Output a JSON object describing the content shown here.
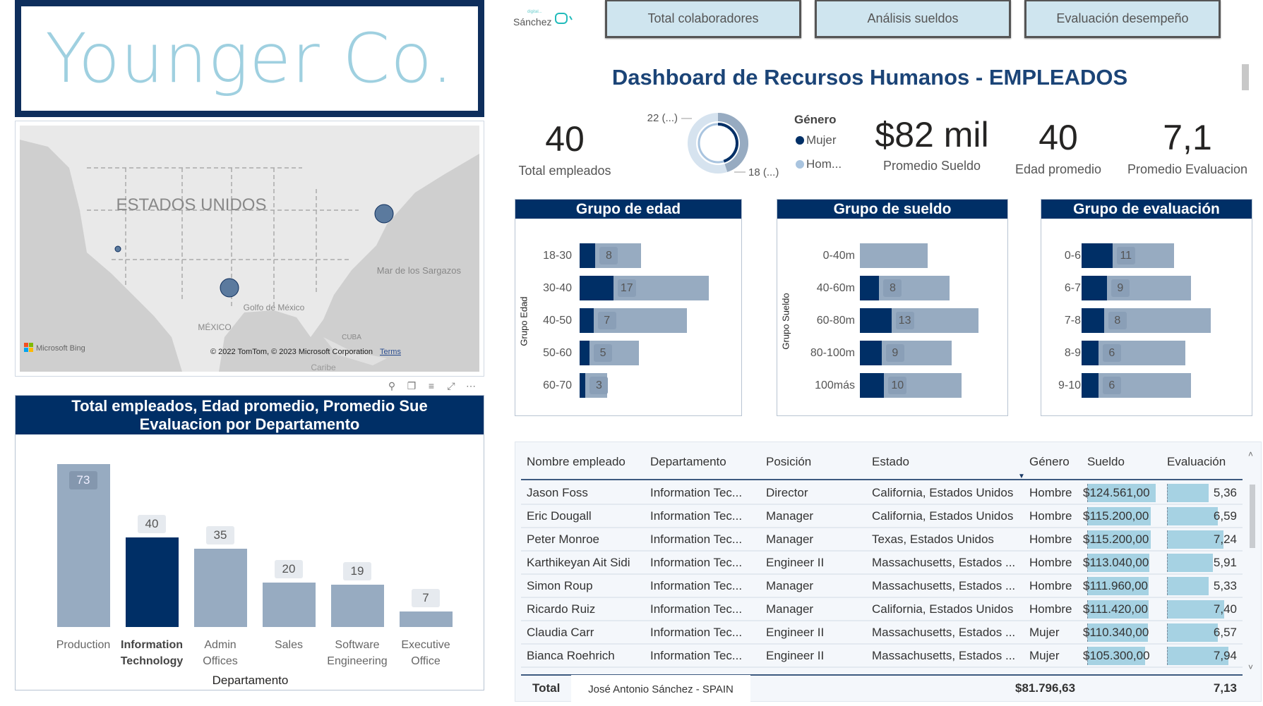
{
  "company_title": "Younger Co.",
  "logo": {
    "small": "digital...",
    "name": "Sánchez"
  },
  "nav_buttons": [
    "Total colaboradores",
    "Análisis sueldos",
    "Evaluación desempeño"
  ],
  "dashboard_title": "Dashboard de Recursos Humanos  - EMPLEADOS",
  "kpis": {
    "total_empleados": {
      "value": "40",
      "label": "Total empleados"
    },
    "promedio_sueldo": {
      "value": "$82 mil",
      "label": "Promedio Sueldo"
    },
    "edad_promedio": {
      "value": "40",
      "label": "Edad promedio"
    },
    "promedio_evaluacion": {
      "value": "7,1",
      "label": "Promedio Evaluacion"
    }
  },
  "gender_donut": {
    "legend_title": "Género",
    "legend": [
      {
        "label": "Mujer",
        "color": "#002f66"
      },
      {
        "label": "Hom...",
        "color": "#a9c4df"
      }
    ],
    "slice_labels": [
      "22 (...)",
      "18 (...)"
    ],
    "values": {
      "Hombre": 22,
      "Mujer": 18
    }
  },
  "map": {
    "country_label": "ESTADOS UNIDOS",
    "labels": [
      "Mar de los Sargazos",
      "Golfo de México",
      "MÉXICO",
      "CUBA",
      "Caribe"
    ],
    "attribution": "© 2022 TomTom, © 2023 Microsoft Corporation",
    "terms": "Terms",
    "bing": "Microsoft Bing",
    "bubbles": [
      {
        "state": "California",
        "size": "small"
      },
      {
        "state": "Texas",
        "size": "large"
      },
      {
        "state": "Massachusetts",
        "size": "large"
      }
    ]
  },
  "colors": {
    "navy": "#002f66",
    "bar_gray": "#97abc1",
    "accent_light": "#9fd0e0",
    "table_bar": "#a6d2e3"
  },
  "chart_data": [
    {
      "type": "bar",
      "title": "Total empleados, Edad promedio, Promedio Sue... Evaluacion por Departamento",
      "title_lines": [
        "Total empleados, Edad promedio, Promedio Sue",
        "Evaluacion por Departamento"
      ],
      "xlabel": "Departamento",
      "categories": [
        [
          "Production"
        ],
        [
          "Information",
          "Technology"
        ],
        [
          "Admin",
          "Offices"
        ],
        [
          "Sales"
        ],
        [
          "Software",
          "Engineering"
        ],
        [
          "Executive",
          "Office"
        ]
      ],
      "values": [
        73,
        40,
        35,
        20,
        19,
        7
      ],
      "selected_index": 1,
      "ylim": [
        0,
        73
      ]
    },
    {
      "type": "bar",
      "orientation": "horizontal",
      "title": "Grupo de edad",
      "ylabel": "Grupo Edad",
      "categories": [
        "18-30",
        "30-40",
        "40-50",
        "50-60",
        "60-70"
      ],
      "highlighted": [
        8,
        17,
        7,
        5,
        3
      ],
      "totals": [
        31,
        65,
        54,
        30,
        14
      ]
    },
    {
      "type": "bar",
      "orientation": "horizontal",
      "title": "Grupo de sueldo",
      "ylabel": "Grupo Sueldo",
      "categories": [
        "0-40m",
        "40-60m",
        "60-80m",
        "80-100m",
        "100más"
      ],
      "highlighted": [
        0,
        8,
        13,
        9,
        10
      ],
      "totals": [
        28,
        37,
        49,
        38,
        42
      ]
    },
    {
      "type": "bar",
      "orientation": "horizontal",
      "title": "Grupo de evaluación",
      "ylabel": "",
      "categories": [
        "0-6",
        "6-7",
        "7-8",
        "8-9",
        "9-10"
      ],
      "highlighted": [
        11,
        9,
        8,
        6,
        6
      ],
      "totals": [
        33,
        39,
        46,
        37,
        39
      ]
    }
  ],
  "table": {
    "columns": [
      "Nombre empleado",
      "Departamento",
      "Posición",
      "Estado",
      "Género",
      "Sueldo",
      "Evaluación"
    ],
    "sort_column": "Sueldo",
    "rows": [
      [
        "Jason Foss",
        "Information Tec...",
        "Director",
        "California, Estados Unidos",
        "Hombre",
        "$124.561,00",
        "5,36"
      ],
      [
        "Eric Dougall",
        "Information Tec...",
        "Manager",
        "California, Estados Unidos",
        "Hombre",
        "$115.200,00",
        "6,59"
      ],
      [
        "Peter Monroe",
        "Information Tec...",
        "Manager",
        "Texas, Estados Unidos",
        "Hombre",
        "$115.200,00",
        "7,24"
      ],
      [
        "Karthikeyan Ait Sidi",
        "Information Tec...",
        "Engineer II",
        "Massachusetts, Estados ...",
        "Hombre",
        "$113.040,00",
        "5,91"
      ],
      [
        "Simon Roup",
        "Information Tec...",
        "Manager",
        "Massachusetts, Estados ...",
        "Hombre",
        "$111.960,00",
        "5,33"
      ],
      [
        "Ricardo Ruiz",
        "Information Tec...",
        "Manager",
        "California, Estados Unidos",
        "Hombre",
        "$111.420,00",
        "7,40"
      ],
      [
        "Claudia Carr",
        "Information Tec...",
        "Engineer II",
        "Massachusetts, Estados ...",
        "Mujer",
        "$110.340,00",
        "6,57"
      ],
      [
        "Bianca Roehrich",
        "Information Tec...",
        "Engineer II",
        "Massachusetts, Estados ...",
        "Mujer",
        "$105.300,00",
        "7,94"
      ]
    ],
    "salary_values": [
      124561,
      115200,
      115200,
      113040,
      111960,
      111420,
      110340,
      105300
    ],
    "eval_values": [
      5.36,
      6.59,
      7.24,
      5.91,
      5.33,
      7.4,
      6.57,
      7.94
    ],
    "total": {
      "label": "Total",
      "sueldo": "$81.796,63",
      "evaluacion": "7,13"
    }
  },
  "footer": "José Antonio Sánchez - SPAIN"
}
